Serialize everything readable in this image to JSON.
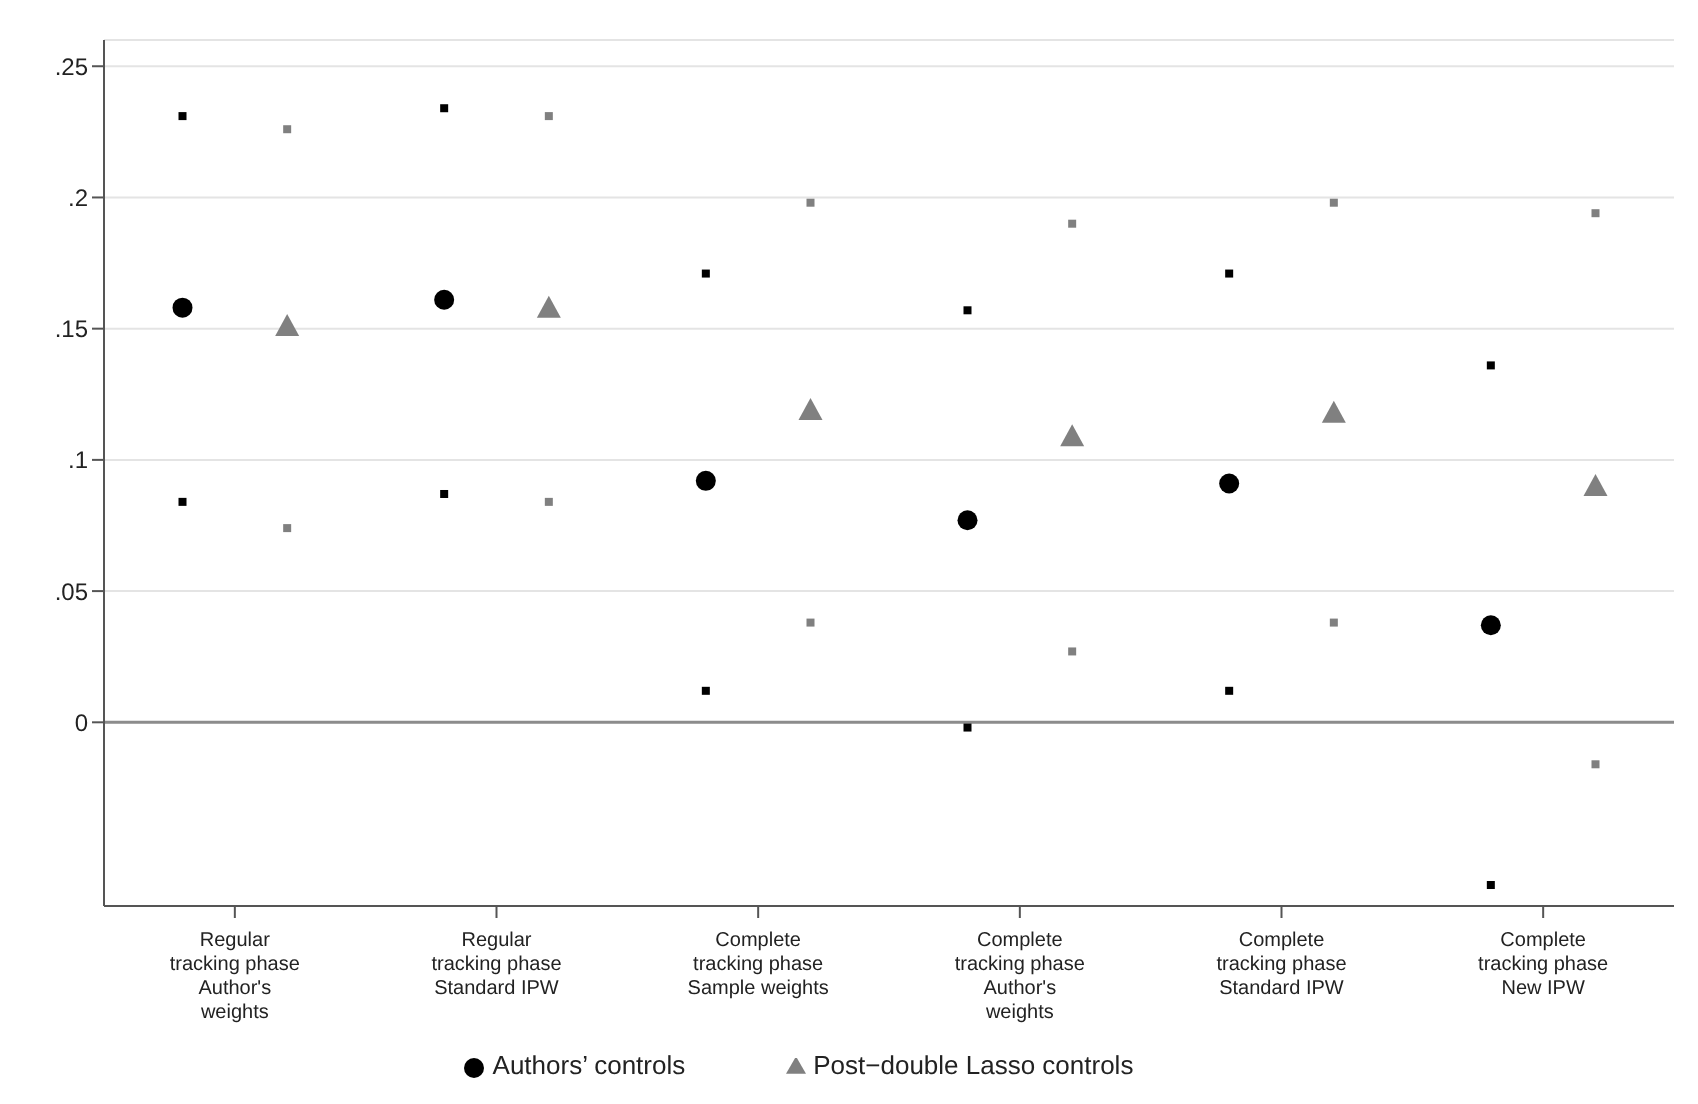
{
  "chart_data": {
    "type": "scatter",
    "categories": [
      "Regular\ntracking phase\nAuthor's\nweights",
      "Regular\ntracking phase\nStandard IPW",
      "Complete\ntracking phase\nSample weights",
      "Complete\ntracking phase\nAuthor's\nweights",
      "Complete\ntracking phase\nStandard IPW",
      "Complete\ntracking phase\nNew IPW"
    ],
    "series": [
      {
        "name": "Authors’ controls",
        "color": "#000000",
        "marker": "circle",
        "values": [
          0.158,
          0.161,
          0.092,
          0.077,
          0.091,
          0.037
        ]
      },
      {
        "name": "Post−double Lasso controls",
        "color": "#808080",
        "marker": "triangle",
        "values": [
          0.151,
          0.158,
          0.119,
          0.109,
          0.118,
          0.09
        ]
      },
      {
        "color": "#000000",
        "marker": "square",
        "values": [
          0.231,
          0.234,
          0.171,
          0.157,
          0.171,
          0.136
        ]
      },
      {
        "color": "#000000",
        "marker": "square",
        "values": [
          0.084,
          0.087,
          0.012,
          -0.002,
          0.012,
          -0.062
        ]
      },
      {
        "color": "#808080",
        "marker": "square",
        "values": [
          0.226,
          0.231,
          0.198,
          0.19,
          0.198,
          0.194
        ]
      },
      {
        "color": "#808080",
        "marker": "square",
        "values": [
          0.074,
          0.084,
          0.038,
          0.027,
          0.038,
          -0.016
        ]
      }
    ],
    "ylim": [
      -0.07,
      0.26
    ],
    "yticks": [
      0,
      {
        "value": 0.05,
        "label": ".05"
      },
      {
        "value": 0.1,
        "label": ".1"
      },
      {
        "value": 0.15,
        "label": ".15"
      },
      {
        "value": 0.2,
        "label": ".2"
      },
      {
        "value": 0.25,
        "label": ".25"
      }
    ],
    "grid": "y",
    "legend": "bottom",
    "ref_lines": [
      {
        "axis": "y",
        "value": 0,
        "color": "#8c8c8c"
      }
    ]
  }
}
